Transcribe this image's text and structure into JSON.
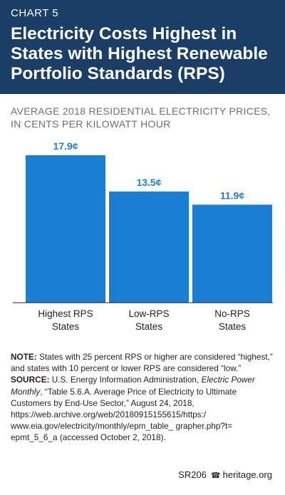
{
  "header": {
    "chart_label": "CHART 5",
    "title": "Electricity Costs Highest in States with Highest Renewable Portfolio Standards (RPS)"
  },
  "subtitle": "AVERAGE 2018 RESIDENTIAL ELECTRICITY PRICES, IN CENTS PER KILOWATT HOUR",
  "colors": {
    "header_bg": "#1a3e66",
    "bar": "#1a7fd4",
    "value_label": "#1a7fd4"
  },
  "chart_data": {
    "type": "bar",
    "categories": [
      "Highest RPS States",
      "Low-RPS States",
      "No-RPS States"
    ],
    "category_lines": [
      [
        "Highest RPS",
        "States"
      ],
      [
        "Low-RPS",
        "States"
      ],
      [
        "No-RPS",
        "States"
      ]
    ],
    "values": [
      17.9,
      13.5,
      11.9
    ],
    "value_labels": [
      "17.9¢",
      "13.5¢",
      "11.9¢"
    ],
    "title": "Electricity Costs Highest in States with Highest Renewable Portfolio Standards (RPS)",
    "ylabel": "AVERAGE 2018 RESIDENTIAL ELECTRICITY PRICES, IN CENTS PER KILOWATT HOUR",
    "ylim": [
      0,
      17.9
    ],
    "grid": false,
    "legend": "none"
  },
  "notes": {
    "note_label": "NOTE:",
    "note_text": "States with 25 percent RPS or higher are considered “highest,” and states with 10 percent or lower RPS are considered “low.”",
    "source_label": "SOURCE:",
    "source_pre": "U.S. Energy Information Administration,",
    "source_pub": "Electric Power Monthly",
    "source_post": ", “Table 5.6.A. Average Price of Electricity to Ultimate Customers by End-Use Sector,” August 24, 2018, https://web.archive.org/web/20180915155615/https:/ www.eia.gov/electricity/monthly/epm_table_ grapher.php?t= epmt_5_6_a (accessed October 2, 2018)."
  },
  "footer": {
    "code": "SR206",
    "icon": "heritage-bell-icon",
    "site": "heritage.org"
  }
}
